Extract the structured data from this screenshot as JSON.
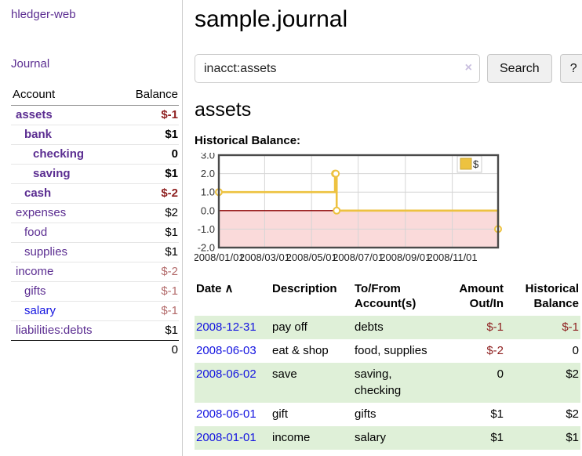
{
  "sidebar": {
    "app_title": "hledger-web",
    "nav": [
      {
        "label": "Journal"
      }
    ],
    "accounts_table": {
      "headers": [
        "Account",
        "Balance"
      ],
      "rows": [
        {
          "name": "assets",
          "depth": 1,
          "bold": true,
          "balance": "$-1",
          "balance_class": "neg"
        },
        {
          "name": "bank",
          "depth": 2,
          "bold": true,
          "balance": "$1",
          "balance_class": ""
        },
        {
          "name": "checking",
          "depth": 3,
          "bold": true,
          "balance": "0",
          "balance_class": ""
        },
        {
          "name": "saving",
          "depth": 3,
          "bold": true,
          "balance": "$1",
          "balance_class": ""
        },
        {
          "name": "cash",
          "depth": 2,
          "bold": true,
          "balance": "$-2",
          "balance_class": "neg"
        },
        {
          "name": "expenses",
          "depth": 1,
          "bold": false,
          "balance": "$2",
          "balance_class": ""
        },
        {
          "name": "food",
          "depth": 2,
          "bold": false,
          "balance": "$1",
          "balance_class": ""
        },
        {
          "name": "supplies",
          "depth": 2,
          "bold": false,
          "balance": "$1",
          "balance_class": ""
        },
        {
          "name": "income",
          "depth": 1,
          "bold": false,
          "balance": "$-2",
          "balance_class": "negm"
        },
        {
          "name": "gifts",
          "depth": 2,
          "bold": false,
          "balance": "$-1",
          "balance_class": "negm"
        },
        {
          "name": "salary",
          "depth": 2,
          "bold": false,
          "link": "blue",
          "balance": "$-1",
          "balance_class": "negm"
        },
        {
          "name": "liabilities:debts",
          "depth": 1,
          "bold": false,
          "balance": "$1",
          "balance_class": ""
        }
      ],
      "total": "0"
    }
  },
  "main": {
    "title": "sample.journal",
    "search": {
      "value": "inacct:assets",
      "clear_icon": "×",
      "button_label": "Search",
      "help_label": "?"
    },
    "account_heading": "assets",
    "chart_heading": "Historical Balance:",
    "register_table": {
      "headers": [
        "Date",
        "Description",
        "To/From Account(s)",
        "Amount Out/In",
        "Historical Balance"
      ],
      "sort_indicator": "∧",
      "rows": [
        {
          "date": "2008-12-31",
          "description": "pay off",
          "accounts": "debts",
          "amount": "$-1",
          "amount_negative": true,
          "balance": "$-1",
          "balance_negative": true,
          "shaded": true
        },
        {
          "date": "2008-06-03",
          "description": "eat & shop",
          "accounts": "food, supplies",
          "amount": "$-2",
          "amount_negative": true,
          "balance": "0",
          "balance_negative": false,
          "shaded": false
        },
        {
          "date": "2008-06-02",
          "description": "save",
          "accounts": "saving, checking",
          "amount": "0",
          "amount_negative": false,
          "balance": "$2",
          "balance_negative": false,
          "shaded": true
        },
        {
          "date": "2008-06-01",
          "description": "gift",
          "accounts": "gifts",
          "amount": "$1",
          "amount_negative": false,
          "balance": "$2",
          "balance_negative": false,
          "shaded": false
        },
        {
          "date": "2008-01-01",
          "description": "income",
          "accounts": "salary",
          "amount": "$1",
          "amount_negative": false,
          "balance": "$1",
          "balance_negative": false,
          "shaded": true
        }
      ]
    }
  },
  "chart_data": {
    "type": "line",
    "step": true,
    "title": "Historical Balance:",
    "xlabel": "",
    "ylabel": "",
    "ylim": [
      -2,
      3
    ],
    "yticks": [
      {
        "label": "3.0",
        "y": 3
      },
      {
        "label": "2.0",
        "y": 2
      },
      {
        "label": "1.0",
        "y": 1
      },
      {
        "label": "0.0",
        "y": 0
      },
      {
        "label": "-1.0",
        "y": -1
      },
      {
        "label": "-2.0",
        "y": -2
      }
    ],
    "xticks": [
      {
        "label": "2008/01/01",
        "x": 0.0
      },
      {
        "label": "2008/03/01",
        "x": 0.164
      },
      {
        "label": "2008/05/01",
        "x": 0.332
      },
      {
        "label": "2008/07/01",
        "x": 0.499
      },
      {
        "label": "2008/09/01",
        "x": 0.668
      },
      {
        "label": "2008/11/01",
        "x": 0.836
      }
    ],
    "series": [
      {
        "name": "$",
        "color": "#edc240",
        "points": [
          {
            "date": "2008-01-01",
            "x": 0.0,
            "y": 1
          },
          {
            "date": "2008-06-01",
            "x": 0.416,
            "y": 2
          },
          {
            "date": "2008-06-02",
            "x": 0.419,
            "y": 2
          },
          {
            "date": "2008-06-03",
            "x": 0.422,
            "y": 0
          },
          {
            "date": "2008-12-31",
            "x": 1.0,
            "y": -1
          }
        ]
      }
    ],
    "legend": {
      "position": "top-right",
      "entries": [
        {
          "label": "$",
          "color": "#edc240"
        }
      ]
    },
    "grid": true,
    "negative_region_color": "#fadada",
    "zero_line_color": "#8b0000",
    "border_color": "#4a4a4a",
    "gridline_color": "#d5d5d5"
  },
  "colors": {
    "accent_purple": "#5b2d91",
    "link_blue": "#1414e0",
    "negative": "#8e1f1f",
    "negative_muted": "#b36b6b",
    "row_green": "#dff0d8",
    "chart_line": "#edc240"
  }
}
